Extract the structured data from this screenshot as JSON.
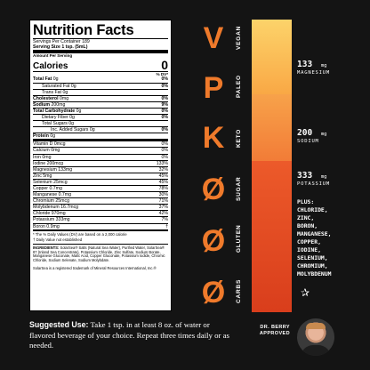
{
  "label": {
    "title": "Nutrition Facts",
    "servings": "Servings Per Container 189",
    "serving_size_label": "Serving Size",
    "serving_size_value": "1 tsp. (5mL)",
    "amount_per_serving": "Amount Per Serving",
    "calories_label": "Calories",
    "calories_value": "0",
    "dv_header": "% DV*",
    "rows": [
      {
        "name": "Total Fat",
        "amount": "0g",
        "dv": "0%",
        "bold": true,
        "indent": 0
      },
      {
        "name": "Saturated Fat",
        "amount": "0g",
        "dv": "0%",
        "bold": false,
        "indent": 1
      },
      {
        "name": "Trans Fat",
        "amount": "0g",
        "dv": "",
        "bold": false,
        "indent": 1
      },
      {
        "name": "Cholesterol",
        "amount": "0mg",
        "dv": "0%",
        "bold": true,
        "indent": 0
      },
      {
        "name": "Sodium",
        "amount": "200mg",
        "dv": "9%",
        "bold": true,
        "indent": 0
      },
      {
        "name": "Total Carbohydrate",
        "amount": "0g",
        "dv": "0%",
        "bold": true,
        "indent": 0
      },
      {
        "name": "Dietary Fiber",
        "amount": "0g",
        "dv": "0%",
        "bold": false,
        "indent": 1
      },
      {
        "name": "Total Sugars",
        "amount": "0g",
        "dv": "",
        "bold": false,
        "indent": 1
      },
      {
        "name": "Inc. Added Sugars",
        "amount": "0g",
        "dv": "0%",
        "bold": false,
        "indent": 2
      },
      {
        "name": "Protein",
        "amount": "0g",
        "dv": "",
        "bold": true,
        "indent": 0
      }
    ],
    "vitamins": [
      {
        "name": "Vitamin D",
        "amount": "0mcg",
        "dv": "0%"
      },
      {
        "name": "Calcium",
        "amount": "0mg",
        "dv": "0%"
      },
      {
        "name": "Iron",
        "amount": "0mg",
        "dv": "0%"
      },
      {
        "name": "Iodine",
        "amount": "200mcg",
        "dv": "133%"
      },
      {
        "name": "Magnesium",
        "amount": "133mg",
        "dv": "32%"
      },
      {
        "name": "Zinc",
        "amount": "5mg",
        "dv": "45%"
      },
      {
        "name": "Selenium",
        "amount": "25mcg",
        "dv": "45%"
      },
      {
        "name": "Copper",
        "amount": "0.7mg",
        "dv": "78%"
      },
      {
        "name": "Manganese",
        "amount": "0.7mg",
        "dv": "30%"
      },
      {
        "name": "Chromium",
        "amount": "25mcg",
        "dv": "71%"
      },
      {
        "name": "Molybdenum",
        "amount": "16.7mcg",
        "dv": "37%"
      },
      {
        "name": "Chloride",
        "amount": "970mg",
        "dv": "42%"
      },
      {
        "name": "Potassium",
        "amount": "333mg",
        "dv": "7%"
      },
      {
        "name": "Boron",
        "amount": "0.9mg",
        "dv": "†"
      }
    ],
    "footnote1": "* The % Daily Values (DV) are based on a 2,000 calorie",
    "footnote2": "† Daily Value not established",
    "ingredients_label": "INGREDIENTS:",
    "ingredients_text": " SolarSea® Salts (Natural Sea Water), Purified Water, SolarSea® 87 (Inland Sea Concentrate), Potassium Chloride, Zinc Sulfate, Sodium Borate, Manganese Gluconate, Malic Acid, Copper Gluconate, Potassium Iodide, Chromic Chloride, Sodium Selenate, Sodium Molybdate.",
    "trademark": "SolarSea is a registered trademark of Mineral Resources International, Inc.®"
  },
  "claims": [
    {
      "letter": "V",
      "word": "VEGAN"
    },
    {
      "letter": "P",
      "word": "PALEO"
    },
    {
      "letter": "K",
      "word": "KETO"
    },
    {
      "letter": "Ø",
      "word": "SUGAR"
    },
    {
      "letter": "Ø",
      "word": "GLUTEN"
    },
    {
      "letter": "Ø",
      "word": "CARBS"
    }
  ],
  "minerals": [
    {
      "value": "133",
      "unit": "mg",
      "name": "MAGNESIUM"
    },
    {
      "value": "200",
      "unit": "mg",
      "name": "SODIUM"
    },
    {
      "value": "333",
      "unit": "mg",
      "name": "POTASSIUM"
    }
  ],
  "plus": [
    "PLUS:",
    "CHLORIDE,",
    "ZINC,",
    "BORON,",
    "MANGANESE,",
    "COPPER,",
    "IODINE,",
    "SELENIUM,",
    "CHROMIUM,",
    "MOLYBDENUM"
  ],
  "suggested": {
    "label": "Suggested Use:",
    "text": " Take 1 tsp. in at least 8 oz. of water or flavored beverage of your choice. Repeat three times daily or as needed."
  },
  "approved": {
    "line1": "DR. BERRY",
    "line2": "APPROVED"
  },
  "colors": {
    "accent": "#ef7a2b",
    "bar_top": "#fcd36a",
    "bar_mid": "#f49a43",
    "bar_bottom": "#e04a22",
    "background": "#141414"
  }
}
